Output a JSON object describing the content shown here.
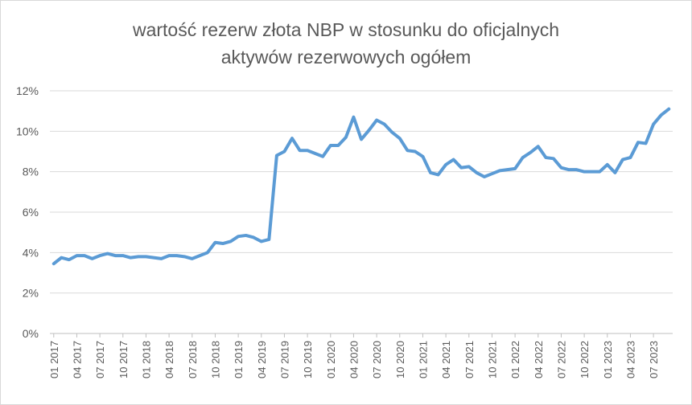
{
  "chart_data": {
    "type": "line",
    "title_lines": [
      "wartość rezerw złota NBP w stosunku do oficjalnych",
      "aktywów rezerwowych ogółem"
    ],
    "xlabel": "",
    "ylabel": "",
    "ylim": [
      0,
      12
    ],
    "yticks": [
      "0%",
      "2%",
      "4%",
      "6%",
      "8%",
      "10%",
      "12%"
    ],
    "grid": true,
    "legend": "none",
    "color": "#5B9BD5",
    "x_tick_labels": [
      "01 2017",
      "04 2017",
      "07 2017",
      "10 2017",
      "01 2018",
      "04 2018",
      "07 2018",
      "10 2018",
      "01 2019",
      "04 2019",
      "07 2019",
      "10 2019",
      "01 2020",
      "04 2020",
      "07 2020",
      "10 2020",
      "01 2021",
      "04 2021",
      "07 2021",
      "10 2021",
      "01 2022",
      "04 2022",
      "07 2022",
      "10 2022",
      "01 2023",
      "04 2023",
      "07 2023"
    ],
    "series": [
      {
        "name": "",
        "values": [
          3.45,
          3.75,
          3.65,
          3.85,
          3.85,
          3.7,
          3.85,
          3.95,
          3.85,
          3.85,
          3.75,
          3.8,
          3.8,
          3.75,
          3.7,
          3.85,
          3.85,
          3.8,
          3.7,
          3.85,
          4.0,
          4.5,
          4.45,
          4.55,
          4.8,
          4.85,
          4.75,
          4.55,
          4.65,
          8.8,
          9.0,
          9.65,
          9.05,
          9.05,
          8.9,
          8.75,
          9.3,
          9.3,
          9.7,
          10.7,
          9.6,
          10.05,
          10.55,
          10.35,
          9.95,
          9.65,
          9.05,
          9.0,
          8.75,
          7.95,
          7.85,
          8.35,
          8.6,
          8.2,
          8.25,
          7.95,
          7.75,
          7.9,
          8.05,
          8.1,
          8.15,
          8.7,
          8.95,
          9.25,
          8.7,
          8.65,
          8.2,
          8.1,
          8.1,
          8.0,
          8.0,
          8.0,
          8.35,
          7.95,
          8.6,
          8.7,
          9.45,
          9.4,
          10.35,
          10.8,
          11.1
        ]
      }
    ]
  }
}
